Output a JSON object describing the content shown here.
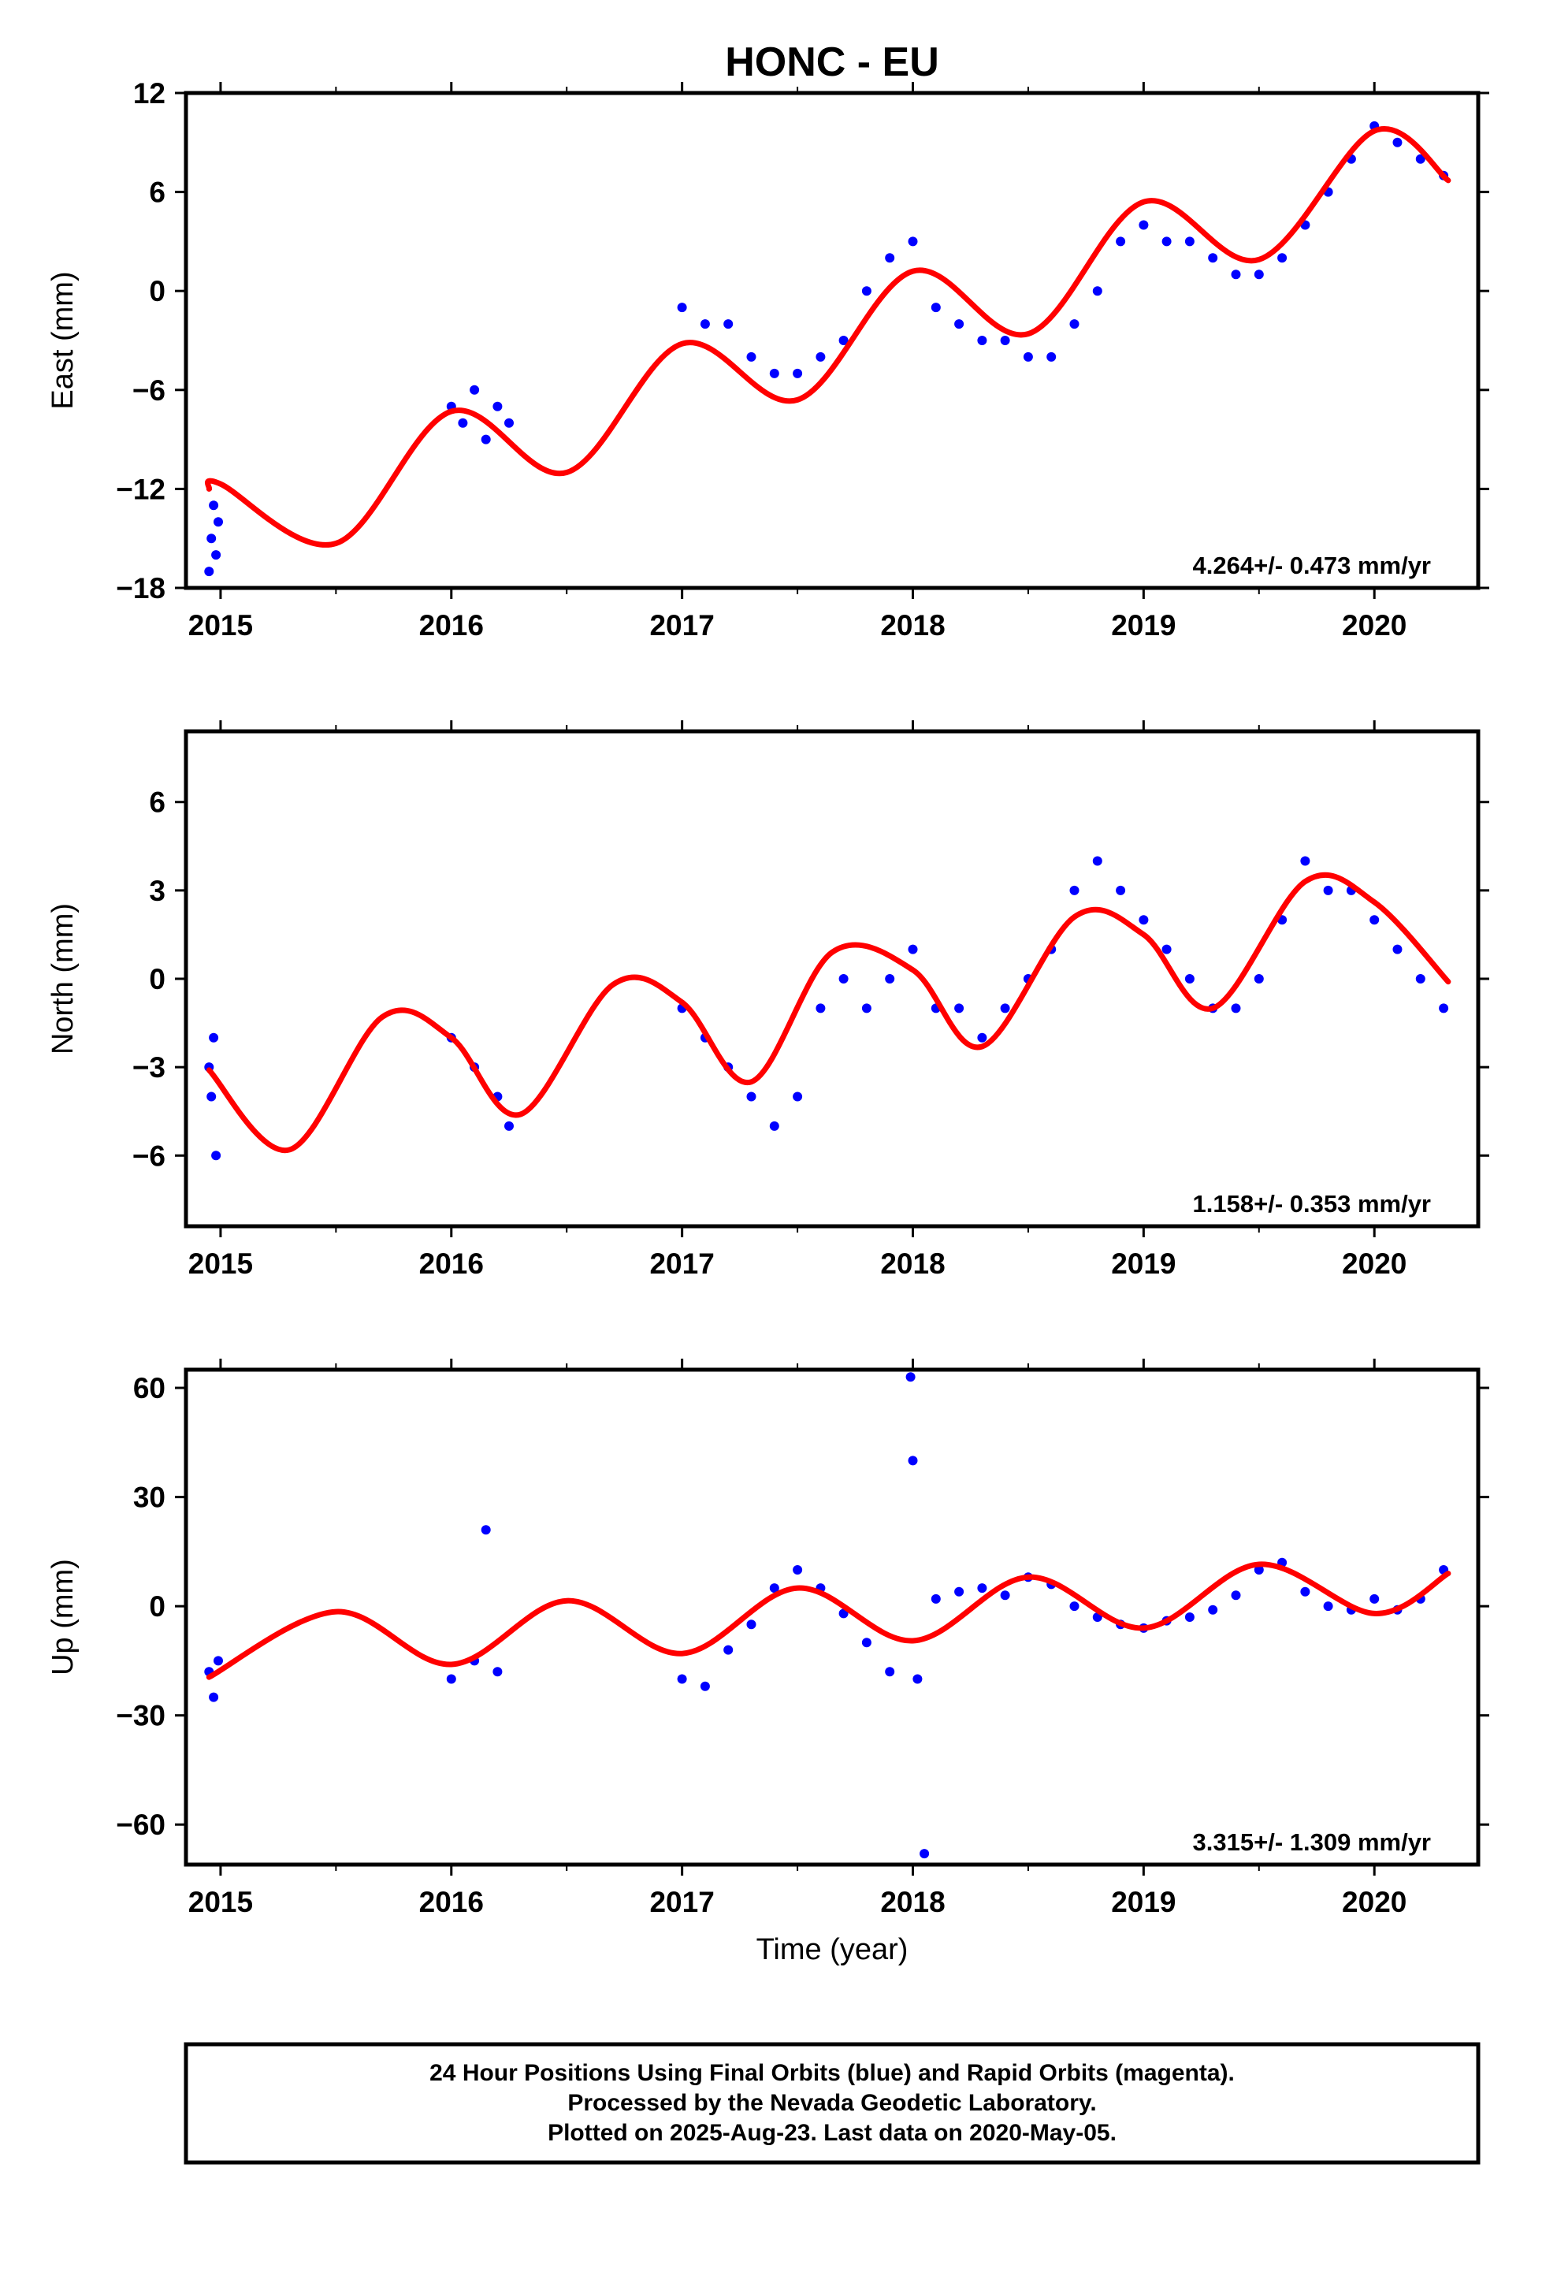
{
  "title": "HONC - EU",
  "xlabel": "Time (year)",
  "footer": [
    "24 Hour Positions Using Final Orbits (blue) and Rapid Orbits (magenta).",
    "Processed by the Nevada Geodetic Laboratory.",
    "Plotted on 2025-Aug-23. Last data on 2020-May-05."
  ],
  "colors": {
    "final_orbits": "#0000ff",
    "model_fit": "#ff0000"
  },
  "chart_data": [
    {
      "type": "scatter",
      "ylabel": "East (mm)",
      "rate": "4.264+/- 0.473 mm/yr",
      "xlim": [
        2014.85,
        2020.45
      ],
      "ylim": [
        -18,
        12
      ],
      "xticks": [
        2015,
        2016,
        2017,
        2018,
        2019,
        2020
      ],
      "yticks": [
        12,
        6,
        0,
        -6,
        -12,
        -18
      ],
      "ytick_labels": [
        "12",
        "6",
        "0",
        "−6",
        "−12",
        "−18"
      ],
      "series": [
        {
          "kind": "points",
          "color": "#0000ff",
          "x": [
            2014.95,
            2014.96,
            2014.97,
            2014.98,
            2014.99,
            2016.0,
            2016.05,
            2016.1,
            2016.15,
            2016.2,
            2016.25,
            2017.0,
            2017.1,
            2017.2,
            2017.3,
            2017.4,
            2017.5,
            2017.6,
            2017.7,
            2017.8,
            2017.9,
            2018.0,
            2018.1,
            2018.2,
            2018.3,
            2018.4,
            2018.5,
            2018.6,
            2018.7,
            2018.8,
            2018.9,
            2019.0,
            2019.1,
            2019.2,
            2019.3,
            2019.4,
            2019.5,
            2019.6,
            2019.7,
            2019.8,
            2019.9,
            2020.0,
            2020.1,
            2020.2,
            2020.3
          ],
          "y": [
            -17,
            -15,
            -13,
            -16,
            -14,
            -7,
            -8,
            -6,
            -9,
            -7,
            -8,
            -1,
            -2,
            -2,
            -4,
            -5,
            -5,
            -4,
            -3,
            0,
            2,
            3,
            -1,
            -2,
            -3,
            -3,
            -4,
            -4,
            -2,
            0,
            3,
            4,
            3,
            3,
            2,
            1,
            1,
            2,
            4,
            6,
            8,
            10,
            9,
            8,
            7
          ]
        }
      ],
      "model": {
        "color": "#ff0000",
        "x": [
          2014.95,
          2015.0,
          2015.5,
          2016.0,
          2016.5,
          2017.0,
          2017.5,
          2018.0,
          2018.5,
          2019.0,
          2019.5,
          2020.0,
          2020.32
        ],
        "y": [
          -12,
          -11.7,
          -15.3,
          -7.3,
          -11,
          -3.2,
          -6.6,
          1.2,
          -2.6,
          5.4,
          1.9,
          9.7,
          6.7
        ]
      }
    },
    {
      "type": "scatter",
      "ylabel": "North (mm)",
      "rate": "1.158+/- 0.353 mm/yr",
      "xlim": [
        2014.85,
        2020.45
      ],
      "ylim": [
        -8.4,
        8.4
      ],
      "xticks": [
        2015,
        2016,
        2017,
        2018,
        2019,
        2020
      ],
      "yticks": [
        6,
        3,
        0,
        -3,
        -6
      ],
      "ytick_labels": [
        "6",
        "3",
        "0",
        "−3",
        "−6"
      ],
      "series": [
        {
          "kind": "points",
          "color": "#0000ff",
          "x": [
            2014.95,
            2014.96,
            2014.97,
            2014.98,
            2016.0,
            2016.1,
            2016.2,
            2016.25,
            2017.0,
            2017.1,
            2017.2,
            2017.3,
            2017.4,
            2017.5,
            2017.6,
            2017.7,
            2017.8,
            2017.9,
            2018.0,
            2018.1,
            2018.2,
            2018.3,
            2018.4,
            2018.5,
            2018.6,
            2018.7,
            2018.8,
            2018.9,
            2019.0,
            2019.1,
            2019.2,
            2019.3,
            2019.4,
            2019.5,
            2019.6,
            2019.7,
            2019.8,
            2019.9,
            2020.0,
            2020.1,
            2020.2,
            2020.3
          ],
          "y": [
            -3,
            -4,
            -2,
            -6,
            -2,
            -3,
            -4,
            -5,
            -1,
            -2,
            -3,
            -4,
            -5,
            -4,
            -1,
            0,
            -1,
            0,
            1,
            -1,
            -1,
            -2,
            -1,
            0,
            1,
            3,
            4,
            3,
            2,
            1,
            0,
            -1,
            -1,
            0,
            2,
            4,
            3,
            3,
            2,
            1,
            0,
            -1
          ]
        }
      ],
      "model": {
        "color": "#ff0000",
        "x": [
          2014.95,
          2015.3,
          2015.7,
          2016.0,
          2016.3,
          2016.7,
          2017.0,
          2017.3,
          2017.65,
          2018.0,
          2018.3,
          2018.7,
          2019.0,
          2019.3,
          2019.7,
          2020.0,
          2020.32
        ],
        "y": [
          -3.1,
          -5.8,
          -1.3,
          -2,
          -4.6,
          -0.2,
          -0.8,
          -3.5,
          0.9,
          0.3,
          -2.3,
          2.1,
          1.5,
          -1,
          3.3,
          2.6,
          -0.1
        ]
      }
    },
    {
      "type": "scatter",
      "ylabel": "Up (mm)",
      "rate": "3.315+/- 1.309 mm/yr",
      "xlim": [
        2014.85,
        2020.45
      ],
      "ylim": [
        -71,
        65
      ],
      "xticks": [
        2015,
        2016,
        2017,
        2018,
        2019,
        2020
      ],
      "yticks": [
        60,
        30,
        0,
        -30,
        -60
      ],
      "ytick_labels": [
        "60",
        "30",
        "0",
        "−30",
        "−60"
      ],
      "series": [
        {
          "kind": "points",
          "color": "#0000ff",
          "x": [
            2014.95,
            2014.97,
            2014.99,
            2016.0,
            2016.1,
            2016.15,
            2016.2,
            2017.0,
            2017.1,
            2017.2,
            2017.3,
            2017.4,
            2017.5,
            2017.6,
            2017.7,
            2017.8,
            2017.9,
            2017.99,
            2018.0,
            2018.02,
            2018.05,
            2018.1,
            2018.2,
            2018.3,
            2018.4,
            2018.5,
            2018.6,
            2018.7,
            2018.8,
            2018.9,
            2019.0,
            2019.1,
            2019.2,
            2019.3,
            2019.4,
            2019.5,
            2019.6,
            2019.7,
            2019.8,
            2019.9,
            2020.0,
            2020.1,
            2020.2,
            2020.3
          ],
          "y": [
            -18,
            -25,
            -15,
            -20,
            -15,
            21,
            -18,
            -20,
            -22,
            -12,
            -5,
            5,
            10,
            5,
            -2,
            -10,
            -18,
            63,
            40,
            -20,
            -68,
            2,
            4,
            5,
            3,
            8,
            6,
            0,
            -3,
            -5,
            -6,
            -4,
            -3,
            -1,
            3,
            10,
            12,
            4,
            0,
            -1,
            2,
            -1,
            2,
            10
          ]
        }
      ],
      "model": {
        "color": "#ff0000",
        "x": [
          2014.95,
          2015.5,
          2016.0,
          2016.5,
          2017.0,
          2017.5,
          2018.0,
          2018.5,
          2019.0,
          2019.5,
          2020.0,
          2020.32
        ],
        "y": [
          -19.5,
          -1.5,
          -16,
          1.5,
          -13,
          5,
          -9.5,
          8,
          -6,
          11.5,
          -2,
          9
        ]
      }
    }
  ]
}
